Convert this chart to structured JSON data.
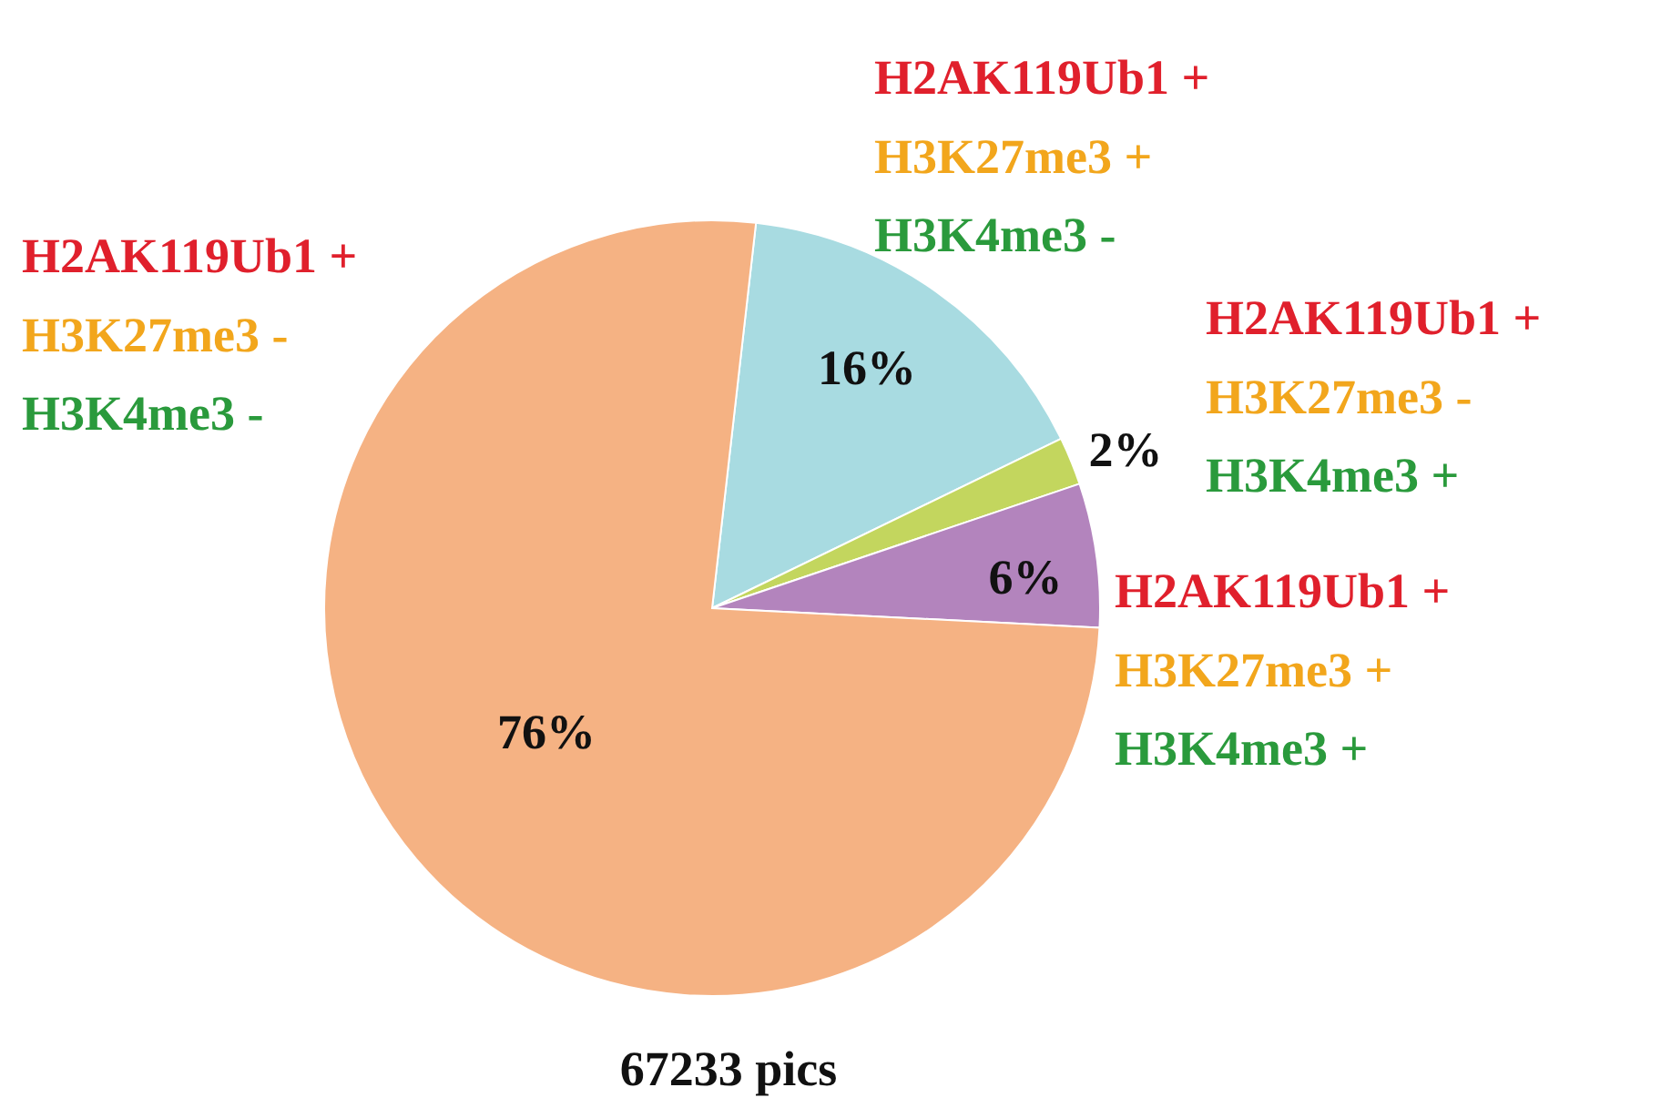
{
  "chart_data": {
    "type": "pie",
    "categories": [
      "H2AK119Ub1 +\nH3K27me3 +\nH3K4me3 -",
      "H2AK119Ub1 +\nH3K27me3 -\nH3K4me3 +",
      "H2AK119Ub1 +\nH3K27me3 +\nH3K4me3 +",
      "H2AK119Ub1 +\nH3K27me3 -\nH3K4me3 -"
    ],
    "values": [
      16,
      2,
      6,
      76
    ],
    "colors": [
      "#a8dbe1",
      "#c3d65e",
      "#b384bd",
      "#f5b283"
    ],
    "value_labels": [
      "16%",
      "2%",
      "6%",
      "76%"
    ],
    "annotations": [
      "67233 pics"
    ]
  }
}
